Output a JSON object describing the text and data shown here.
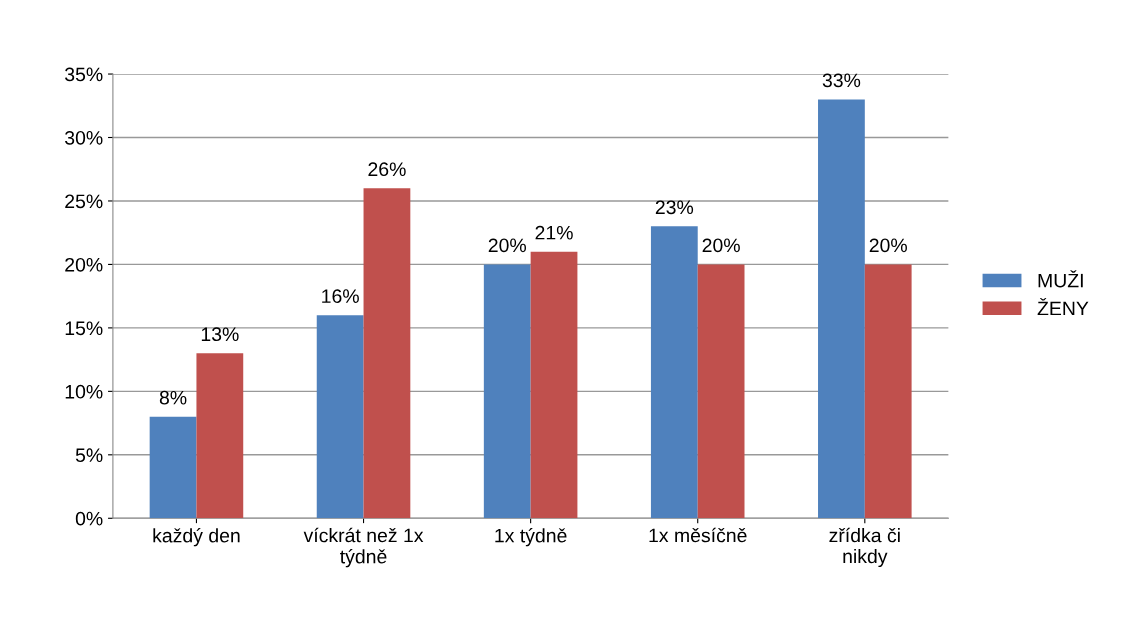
{
  "chart_data": {
    "type": "bar",
    "categories": [
      "každý den",
      "víckrát než 1x\ntýdně",
      "1x týdně",
      "1x měsíčně",
      "zřídka či\nnikdy"
    ],
    "series": [
      {
        "name": "MUŽI",
        "color": "#4f81bd",
        "values": [
          8,
          16,
          20,
          23,
          33
        ],
        "value_labels": [
          "8%",
          "16%",
          "20%",
          "23%",
          "33%"
        ]
      },
      {
        "name": "ŽENY",
        "color": "#c0504d",
        "values": [
          13,
          26,
          21,
          20,
          20
        ],
        "value_labels": [
          "13%",
          "26%",
          "21%",
          "20%",
          "20%"
        ]
      }
    ],
    "ylim": [
      0,
      35
    ],
    "yticks": [
      {
        "value": 0,
        "label": "0%"
      },
      {
        "value": 5,
        "label": "5%"
      },
      {
        "value": 10,
        "label": "10%"
      },
      {
        "value": 15,
        "label": "15%"
      },
      {
        "value": 20,
        "label": "20%"
      },
      {
        "value": 25,
        "label": "25%"
      },
      {
        "value": 30,
        "label": "30%"
      },
      {
        "value": 35,
        "label": "35%"
      }
    ],
    "grid": "y",
    "legend": "right"
  }
}
